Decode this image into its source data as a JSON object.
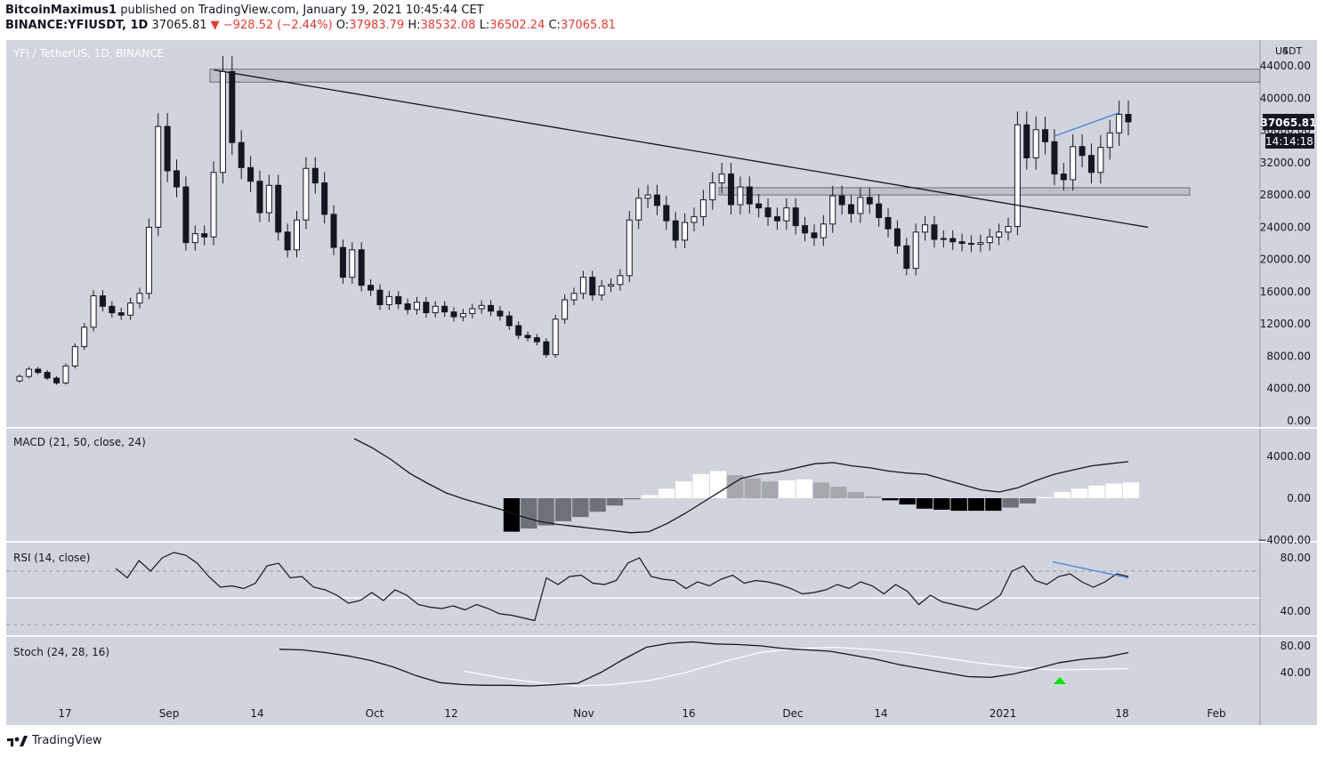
{
  "header": {
    "author": "BitcoinMaximus1",
    "published": "published on TradingView.com, January 19, 2021 10:45:44 CET",
    "symbol_line": "BINANCE:YFIUSDT, 1D",
    "last": "37065.81",
    "change": "−928.52 (−2.44%)",
    "open_label": "O:",
    "open": "37983.79",
    "high_label": "H:",
    "high": "38532.08",
    "low_label": "L:",
    "low": "36502.24",
    "close_label": "C:",
    "close": "37065.81"
  },
  "footer": {
    "brand": "TradingView"
  },
  "colors": {
    "panel_bg": "#d1d4dc",
    "up": "#ffffff",
    "down": "#131722",
    "blue": "#4a7fe0",
    "price_tag": "#131722",
    "arrow": "#00e600"
  },
  "chart_data": [
    {
      "type": "candlestick",
      "title": "YFI / TetherUS, 1D, BINANCE",
      "unit": "USDT",
      "ylim": [
        0,
        46000
      ],
      "y_ticks": [
        "44000.00",
        "40000.00",
        "36000.00",
        "32000.00",
        "28000.00",
        "24000.00",
        "20000.00",
        "16000.00",
        "12000.00",
        "8000.00",
        "4000.00",
        "0.00"
      ],
      "x_ticks": [
        "17",
        "Sep",
        "14",
        "Oct",
        "12",
        "Nov",
        "16",
        "Dec",
        "14",
        "2021",
        "18",
        "Feb"
      ],
      "last_price_label": "37065.81",
      "countdown_label": "14:14:18",
      "last_price": 37065.81,
      "closes": [
        5500,
        6400,
        6000,
        5300,
        4700,
        6800,
        9200,
        11600,
        15500,
        14200,
        13400,
        13100,
        14600,
        15800,
        24000,
        36500,
        31000,
        29000,
        22100,
        23200,
        22800,
        30800,
        43300,
        34500,
        31400,
        29700,
        25800,
        29200,
        23400,
        21200,
        24900,
        31300,
        29500,
        25600,
        21500,
        17800,
        21200,
        16800,
        16200,
        14400,
        15400,
        14500,
        13800,
        14700,
        13400,
        14200,
        13500,
        12900,
        13300,
        13900,
        14300,
        13600,
        13000,
        11800,
        10600,
        10300,
        9800,
        8200,
        12600,
        15000,
        15800,
        17800,
        15600,
        16700,
        16900,
        18000,
        24900,
        27600,
        28000,
        26700,
        24800,
        22400,
        24600,
        25300,
        27400,
        29500,
        30600,
        26800,
        29000,
        26900,
        26400,
        25300,
        24800,
        26400,
        24200,
        23300,
        22700,
        24400,
        27900,
        26800,
        25700,
        27700,
        26900,
        25200,
        23800,
        21700,
        18900,
        23400,
        24300,
        22500,
        22600,
        22200,
        22000,
        21900,
        22100,
        22800,
        23400,
        24100,
        36700,
        32600,
        36100,
        34600,
        30600,
        29900,
        34000,
        32900,
        30800,
        33900,
        35700,
        38000,
        37065.81
      ],
      "levels": [
        {
          "from": 42000,
          "to": 43600
        },
        {
          "from": 28000,
          "to": 28900
        }
      ],
      "descending_trendline": true
    },
    {
      "type": "macd",
      "title": "MACD (21, 50, close, 24)",
      "y_ticks": [
        "4000.00",
        "0.00",
        "−4000.00"
      ],
      "ylim": [
        -4000,
        4000
      ],
      "line": [
        5700,
        4800,
        3700,
        2400,
        1400,
        500,
        -100,
        -600,
        -1100,
        -1700,
        -2200,
        -2500,
        -2700,
        -2900,
        -3100,
        -3300,
        -3200,
        -2400,
        -1400,
        -300,
        800,
        1900,
        2300,
        2500,
        2900,
        3300,
        3400,
        3100,
        2900,
        2600,
        2400,
        2300,
        1800,
        1300,
        800,
        600,
        1000,
        1700,
        2300,
        2700,
        3100,
        3300,
        3500
      ],
      "histogram": [
        -3200,
        -2900,
        -2600,
        -2200,
        -1800,
        -1300,
        -700,
        -100,
        300,
        900,
        1600,
        2300,
        2600,
        2200,
        1900,
        1600,
        1700,
        1800,
        1500,
        1100,
        600,
        200,
        -200,
        -600,
        -1000,
        -1100,
        -1200,
        -1200,
        -1200,
        -900,
        -500,
        100,
        600,
        900,
        1200,
        1400,
        1500
      ]
    },
    {
      "type": "line",
      "title": "RSI (14, close)",
      "y_ticks": [
        "80.00",
        "40.00"
      ],
      "ylim": [
        30,
        90
      ],
      "levels": [
        70,
        50,
        30
      ],
      "values": [
        72,
        65,
        78,
        70,
        80,
        84,
        82,
        76,
        66,
        58,
        59,
        57,
        61,
        74,
        76,
        65,
        66,
        58,
        56,
        52,
        46,
        48,
        54,
        48,
        56,
        52,
        45,
        43,
        42,
        44,
        41,
        45,
        42,
        38,
        37,
        35,
        33,
        65,
        60,
        66,
        67,
        61,
        60,
        63,
        76,
        80,
        66,
        64,
        63,
        57,
        62,
        59,
        64,
        67,
        61,
        63,
        62,
        60,
        57,
        53,
        54,
        56,
        60,
        57,
        62,
        59,
        53,
        60,
        55,
        45,
        52,
        47,
        45,
        43,
        41,
        46,
        52,
        70,
        74,
        63,
        60,
        66,
        68,
        62,
        58,
        62,
        68,
        66
      ]
    },
    {
      "type": "stochastic",
      "title": "Stoch (24, 28, 16)",
      "y_ticks": [
        "80.00",
        "40.00"
      ],
      "ylim": [
        10,
        95
      ],
      "k": [
        75,
        74,
        70,
        65,
        58,
        48,
        35,
        25,
        22,
        21,
        21,
        20,
        22,
        24,
        40,
        60,
        78,
        84,
        86,
        83,
        82,
        80,
        76,
        74,
        72,
        66,
        60,
        52,
        46,
        40,
        34,
        33,
        38,
        46,
        55,
        60,
        63,
        70
      ],
      "d": [
        42,
        32,
        25,
        20,
        22,
        28,
        40,
        56,
        70,
        76,
        78,
        75,
        70,
        62,
        54,
        48,
        44,
        45,
        46
      ]
    }
  ]
}
